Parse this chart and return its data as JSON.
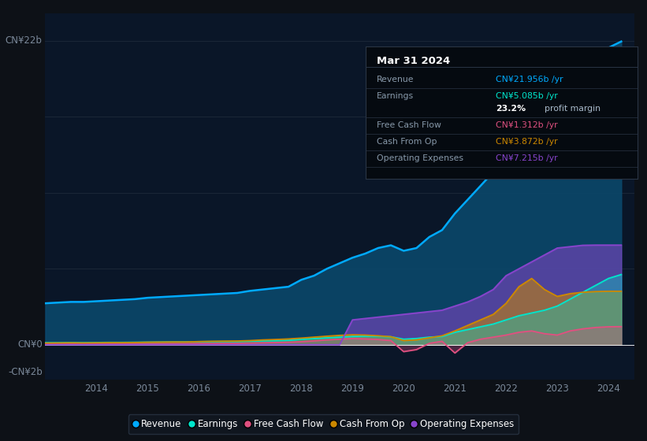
{
  "bg_color": "#0d1117",
  "plot_bg_color": "#0a1628",
  "grid_color": "#1e2a3a",
  "text_color": "#7a8899",
  "years": [
    2013.0,
    2013.25,
    2013.5,
    2013.75,
    2014.0,
    2014.25,
    2014.5,
    2014.75,
    2015.0,
    2015.25,
    2015.5,
    2015.75,
    2016.0,
    2016.25,
    2016.5,
    2016.75,
    2017.0,
    2017.25,
    2017.5,
    2017.75,
    2018.0,
    2018.25,
    2018.5,
    2018.75,
    2019.0,
    2019.25,
    2019.5,
    2019.75,
    2020.0,
    2020.25,
    2020.5,
    2020.75,
    2021.0,
    2021.25,
    2021.5,
    2021.75,
    2022.0,
    2022.25,
    2022.5,
    2022.75,
    2023.0,
    2023.25,
    2023.5,
    2023.75,
    2024.0,
    2024.25
  ],
  "revenue": [
    3.0,
    3.05,
    3.1,
    3.1,
    3.15,
    3.2,
    3.25,
    3.3,
    3.4,
    3.45,
    3.5,
    3.55,
    3.6,
    3.65,
    3.7,
    3.75,
    3.9,
    4.0,
    4.1,
    4.2,
    4.7,
    5.0,
    5.5,
    5.9,
    6.3,
    6.6,
    7.0,
    7.2,
    6.8,
    7.0,
    7.8,
    8.3,
    9.5,
    10.5,
    11.5,
    12.5,
    13.5,
    15.0,
    15.5,
    16.0,
    17.0,
    18.0,
    19.0,
    20.0,
    21.5,
    21.956
  ],
  "earnings": [
    0.15,
    0.15,
    0.16,
    0.15,
    0.16,
    0.17,
    0.17,
    0.18,
    0.19,
    0.2,
    0.21,
    0.21,
    0.22,
    0.23,
    0.24,
    0.24,
    0.26,
    0.28,
    0.3,
    0.32,
    0.4,
    0.45,
    0.5,
    0.55,
    0.6,
    0.62,
    0.62,
    0.58,
    0.4,
    0.45,
    0.55,
    0.6,
    0.9,
    1.1,
    1.3,
    1.5,
    1.8,
    2.1,
    2.3,
    2.5,
    2.8,
    3.3,
    3.8,
    4.3,
    4.8,
    5.085
  ],
  "free_cash_flow": [
    0.05,
    0.05,
    0.06,
    0.05,
    0.06,
    0.06,
    0.06,
    0.07,
    0.07,
    0.08,
    0.08,
    0.08,
    0.09,
    0.09,
    0.1,
    0.1,
    0.12,
    0.14,
    0.16,
    0.18,
    0.22,
    0.28,
    0.35,
    0.4,
    0.45,
    0.42,
    0.38,
    0.3,
    -0.5,
    -0.35,
    0.1,
    0.25,
    -0.6,
    0.15,
    0.4,
    0.55,
    0.7,
    0.9,
    1.0,
    0.8,
    0.7,
    1.0,
    1.15,
    1.25,
    1.3,
    1.312
  ],
  "cash_from_op": [
    0.12,
    0.13,
    0.14,
    0.13,
    0.14,
    0.15,
    0.15,
    0.16,
    0.18,
    0.19,
    0.2,
    0.2,
    0.23,
    0.25,
    0.26,
    0.27,
    0.3,
    0.35,
    0.38,
    0.42,
    0.48,
    0.55,
    0.62,
    0.68,
    0.72,
    0.7,
    0.65,
    0.58,
    0.3,
    0.35,
    0.5,
    0.65,
    1.0,
    1.4,
    1.8,
    2.2,
    3.0,
    4.2,
    4.8,
    4.0,
    3.5,
    3.7,
    3.8,
    3.85,
    3.872,
    3.872
  ],
  "operating_expenses": [
    0.0,
    0.0,
    0.0,
    0.0,
    0.0,
    0.0,
    0.0,
    0.0,
    0.0,
    0.0,
    0.0,
    0.0,
    0.0,
    0.0,
    0.0,
    0.0,
    0.0,
    0.0,
    0.0,
    0.0,
    0.0,
    0.0,
    0.0,
    0.0,
    1.8,
    1.9,
    2.0,
    2.1,
    2.2,
    2.3,
    2.4,
    2.5,
    2.8,
    3.1,
    3.5,
    4.0,
    5.0,
    5.5,
    6.0,
    6.5,
    7.0,
    7.1,
    7.2,
    7.215,
    7.215,
    7.215
  ],
  "revenue_color": "#00aaff",
  "revenue_fill": "#0a4a6e",
  "earnings_color": "#00e5cc",
  "free_cash_flow_color": "#e05080",
  "cash_from_op_color": "#cc8800",
  "operating_expenses_color": "#8844cc",
  "x_ticks": [
    2014,
    2015,
    2016,
    2017,
    2018,
    2019,
    2020,
    2021,
    2022,
    2023,
    2024
  ],
  "ylim_min": -2.5,
  "ylim_max": 24.0,
  "xlim_min": 2013.0,
  "xlim_max": 2024.5,
  "tooltip_title": "Mar 31 2024",
  "tooltip_rows": [
    {
      "label": "Revenue",
      "value": "CN¥21.956b /yr",
      "value_color": "#00aaff"
    },
    {
      "label": "Earnings",
      "value": "CN¥5.085b /yr",
      "value_color": "#00e5cc"
    },
    {
      "label": "",
      "value": "23.2% profit margin",
      "value_color": "#ffffff",
      "bold_part": "23.2%"
    },
    {
      "label": "Free Cash Flow",
      "value": "CN¥1.312b /yr",
      "value_color": "#e05080"
    },
    {
      "label": "Cash From Op",
      "value": "CN¥3.872b /yr",
      "value_color": "#cc8800"
    },
    {
      "label": "Operating Expenses",
      "value": "CN¥7.215b /yr",
      "value_color": "#8844cc"
    }
  ],
  "legend_items": [
    {
      "label": "Revenue",
      "color": "#00aaff"
    },
    {
      "label": "Earnings",
      "color": "#00e5cc"
    },
    {
      "label": "Free Cash Flow",
      "color": "#e05080"
    },
    {
      "label": "Cash From Op",
      "color": "#cc8800"
    },
    {
      "label": "Operating Expenses",
      "color": "#8844cc"
    }
  ]
}
